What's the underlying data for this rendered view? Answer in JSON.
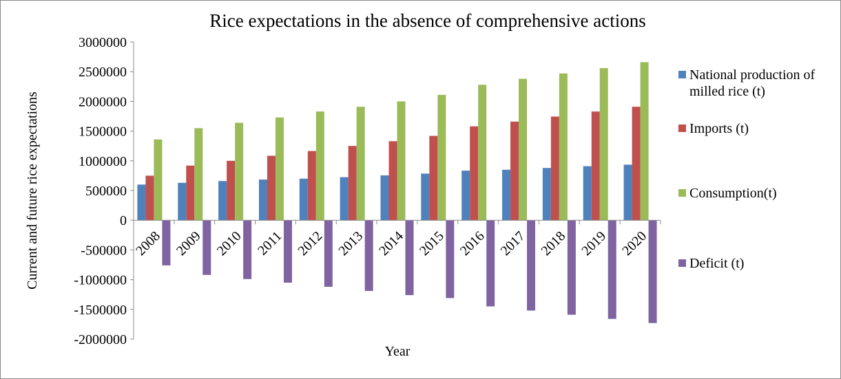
{
  "chart_data": {
    "type": "bar",
    "title": "Rice expectations in the absence of comprehensive actions",
    "x_label": "Year",
    "y_label": "Current and future rice expectations",
    "categories": [
      "2008",
      "2009",
      "2010",
      "2011",
      "2012",
      "2013",
      "2014",
      "2015",
      "2016",
      "2017",
      "2018",
      "2019",
      "2020"
    ],
    "series": [
      {
        "name": "National production of milled rice (t)",
        "color": "#4f81bd",
        "values": [
          600000,
          630000,
          660000,
          685000,
          700000,
          725000,
          755000,
          785000,
          835000,
          850000,
          880000,
          910000,
          935000
        ]
      },
      {
        "name": "Imports (t)",
        "color": "#c0504d",
        "values": [
          750000,
          920000,
          1000000,
          1085000,
          1165000,
          1250000,
          1330000,
          1420000,
          1580000,
          1660000,
          1745000,
          1830000,
          1910000
        ]
      },
      {
        "name": "Consumption(t)",
        "color": "#9bbb59",
        "values": [
          1360000,
          1550000,
          1640000,
          1730000,
          1830000,
          1910000,
          2000000,
          2110000,
          2280000,
          2380000,
          2470000,
          2560000,
          2660000
        ]
      },
      {
        "name": "Deficit (t)",
        "color": "#8064a2",
        "values": [
          -760000,
          -920000,
          -990000,
          -1050000,
          -1120000,
          -1190000,
          -1260000,
          -1310000,
          -1450000,
          -1520000,
          -1590000,
          -1660000,
          -1730000
        ]
      }
    ],
    "ylim": [
      -2000000,
      3000000
    ],
    "yticks": [
      -2000000,
      -1500000,
      -1000000,
      -500000,
      0,
      500000,
      1000000,
      1500000,
      2000000,
      2500000,
      3000000
    ],
    "grid": false
  }
}
